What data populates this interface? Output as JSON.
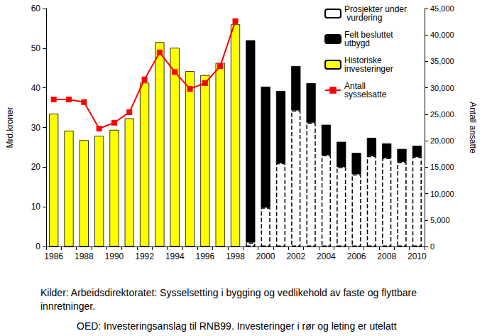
{
  "chart_data": {
    "type": "bar",
    "categories": [
      "1986",
      null,
      "1988",
      null,
      "1990",
      null,
      "1992",
      null,
      "1994",
      null,
      "1996",
      null,
      "1998",
      null,
      "2000",
      null,
      "2002",
      null,
      "2004",
      null,
      "2006",
      null,
      "2008",
      null,
      "2010"
    ],
    "series": [
      {
        "name": "Prosjekter under vurdering",
        "type": "bar",
        "color": "#ffffff",
        "line_style": "dashed",
        "values": [
          null,
          null,
          null,
          null,
          null,
          null,
          null,
          null,
          null,
          null,
          null,
          null,
          null,
          1.0,
          9.8,
          21.0,
          34.3,
          31.2,
          23.0,
          20.0,
          18.2,
          22.8,
          22.3,
          21.3,
          22.6
        ]
      },
      {
        "name": "Felt besluttet utbygd",
        "type": "bar",
        "color": "#000000",
        "values": [
          null,
          null,
          null,
          null,
          null,
          null,
          null,
          null,
          null,
          null,
          null,
          null,
          null,
          51.0,
          30.5,
          18.2,
          11.2,
          10.0,
          7.7,
          6.4,
          5.4,
          4.6,
          3.7,
          3.3,
          2.8
        ]
      },
      {
        "name": "Historiske investeringer",
        "type": "bar",
        "color": "#ffff00",
        "values": [
          33.5,
          29.2,
          26.8,
          27.9,
          29.4,
          32.3,
          41.3,
          51.5,
          50.1,
          44.2,
          43.2,
          46.3,
          56.0,
          null,
          null,
          null,
          null,
          null,
          null,
          null,
          null,
          null,
          null,
          null,
          null
        ]
      },
      {
        "name": "Antall sysselsatte",
        "type": "line",
        "color": "#ff0000",
        "marker": "square",
        "axis": "y2",
        "values": [
          27800,
          27800,
          27300,
          22300,
          23400,
          25400,
          31600,
          36700,
          33000,
          29800,
          30900,
          34100,
          42600,
          null,
          null,
          null,
          null,
          null,
          null,
          null,
          null,
          null,
          null,
          null,
          null
        ]
      }
    ],
    "stacked": true,
    "ylim": [
      0,
      60
    ],
    "yticks": [
      0,
      10,
      20,
      30,
      40,
      50,
      60
    ],
    "y_label": "Mrd.kroner",
    "y2lim": [
      0,
      45000
    ],
    "y2ticks": [
      0,
      5000,
      10000,
      15000,
      20000,
      25000,
      30000,
      35000,
      40000,
      45000
    ],
    "y2_label": "Antall ansatte",
    "legend": "upper right",
    "source": [
      "Kilder: Arbeidsdirektoratet: Sysselsetting i bygging og vedlikehold av faste og flyttbare innretninger.",
      "OED: Investeringsanslag til RNB99. Investeringer i rør og leting er utelatt"
    ]
  }
}
